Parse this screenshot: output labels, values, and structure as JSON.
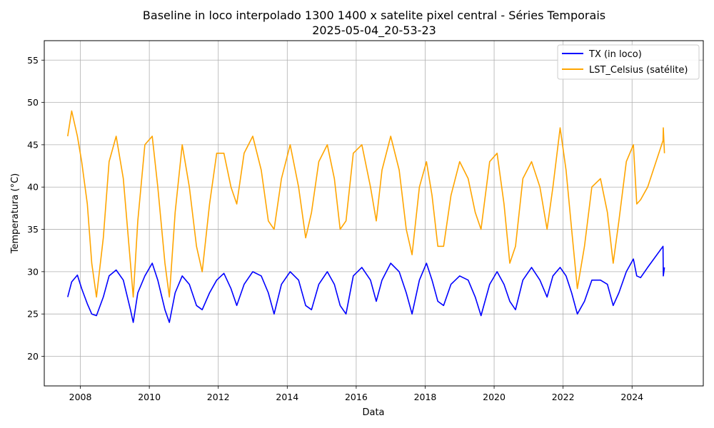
{
  "chart_data": {
    "type": "line",
    "title_line1": "Baseline in loco interpolado 1300 1400 x satelite pixel central  - Séries Temporais",
    "title_line2": "2025-05-04_20-53-23",
    "xlabel": "Data",
    "ylabel": "Temperatura (°C)",
    "xlim": [
      "2006-12-15",
      "2026-01-25"
    ],
    "ylim": [
      16.5,
      57.3
    ],
    "x_ticks": [
      "2008",
      "2010",
      "2012",
      "2014",
      "2016",
      "2018",
      "2020",
      "2022",
      "2024"
    ],
    "y_ticks": [
      "20",
      "25",
      "30",
      "35",
      "40",
      "45",
      "50",
      "55"
    ],
    "grid": true,
    "legend_position": "top-right",
    "series": [
      {
        "name": "TX (in loco)",
        "color": "#0000ff",
        "points": [
          [
            "2007-08-20",
            27.0
          ],
          [
            "2007-10-01",
            28.8
          ],
          [
            "2007-12-01",
            29.6
          ],
          [
            "2008-01-15",
            28.0
          ],
          [
            "2008-03-15",
            26.2
          ],
          [
            "2008-05-01",
            25.0
          ],
          [
            "2008-06-20",
            24.8
          ],
          [
            "2008-09-01",
            27.0
          ],
          [
            "2008-11-01",
            29.5
          ],
          [
            "2009-01-15",
            30.2
          ],
          [
            "2009-04-01",
            29.0
          ],
          [
            "2009-06-15",
            25.5
          ],
          [
            "2009-07-15",
            24.0
          ],
          [
            "2009-09-01",
            27.5
          ],
          [
            "2009-11-15",
            29.5
          ],
          [
            "2010-02-01",
            31.0
          ],
          [
            "2010-04-01",
            29.0
          ],
          [
            "2010-06-15",
            25.5
          ],
          [
            "2010-08-01",
            24.0
          ],
          [
            "2010-10-01",
            27.5
          ],
          [
            "2010-12-15",
            29.5
          ],
          [
            "2011-03-01",
            28.5
          ],
          [
            "2011-05-15",
            26.0
          ],
          [
            "2011-07-15",
            25.5
          ],
          [
            "2011-10-01",
            27.5
          ],
          [
            "2011-12-15",
            29.0
          ],
          [
            "2012-03-01",
            29.8
          ],
          [
            "2012-05-15",
            28.0
          ],
          [
            "2012-07-15",
            26.0
          ],
          [
            "2012-10-01",
            28.5
          ],
          [
            "2013-01-01",
            30.0
          ],
          [
            "2013-04-01",
            29.5
          ],
          [
            "2013-06-15",
            27.5
          ],
          [
            "2013-08-15",
            25.0
          ],
          [
            "2013-11-01",
            28.5
          ],
          [
            "2014-02-01",
            30.0
          ],
          [
            "2014-05-01",
            29.0
          ],
          [
            "2014-07-15",
            26.0
          ],
          [
            "2014-09-15",
            25.5
          ],
          [
            "2014-12-01",
            28.5
          ],
          [
            "2015-03-01",
            30.0
          ],
          [
            "2015-05-15",
            28.5
          ],
          [
            "2015-07-15",
            26.0
          ],
          [
            "2015-09-15",
            25.0
          ],
          [
            "2015-12-01",
            29.5
          ],
          [
            "2016-03-01",
            30.5
          ],
          [
            "2016-06-01",
            29.0
          ],
          [
            "2016-08-01",
            26.5
          ],
          [
            "2016-10-01",
            29.0
          ],
          [
            "2017-01-01",
            31.0
          ],
          [
            "2017-04-01",
            30.0
          ],
          [
            "2017-06-15",
            27.5
          ],
          [
            "2017-08-15",
            25.0
          ],
          [
            "2017-11-01",
            29.0
          ],
          [
            "2018-01-15",
            31.0
          ],
          [
            "2018-03-15",
            29.0
          ],
          [
            "2018-05-15",
            26.5
          ],
          [
            "2018-07-15",
            26.0
          ],
          [
            "2018-10-01",
            28.5
          ],
          [
            "2019-01-01",
            29.5
          ],
          [
            "2019-04-01",
            29.0
          ],
          [
            "2019-06-15",
            27.0
          ],
          [
            "2019-08-15",
            24.8
          ],
          [
            "2019-11-15",
            28.5
          ],
          [
            "2020-02-01",
            30.0
          ],
          [
            "2020-04-15",
            28.5
          ],
          [
            "2020-06-15",
            26.5
          ],
          [
            "2020-08-15",
            25.5
          ],
          [
            "2020-11-01",
            29.0
          ],
          [
            "2021-02-01",
            30.5
          ],
          [
            "2021-05-01",
            29.0
          ],
          [
            "2021-07-15",
            27.0
          ],
          [
            "2021-09-15",
            29.5
          ],
          [
            "2021-12-01",
            30.5
          ],
          [
            "2022-02-01",
            29.5
          ],
          [
            "2022-04-01",
            27.5
          ],
          [
            "2022-06-01",
            25.0
          ],
          [
            "2022-08-15",
            26.5
          ],
          [
            "2022-11-01",
            29.0
          ],
          [
            "2023-02-01",
            29.0
          ],
          [
            "2023-04-15",
            28.5
          ],
          [
            "2023-06-15",
            26.0
          ],
          [
            "2023-08-15",
            27.5
          ],
          [
            "2023-11-01",
            30.0
          ],
          [
            "2024-01-15",
            31.5
          ],
          [
            "2024-02-20",
            29.5
          ],
          [
            "2024-04-01",
            29.3
          ],
          [
            "2024-06-15",
            30.5
          ],
          [
            "2024-11-25",
            33.0
          ],
          [
            "2024-11-28",
            29.5
          ],
          [
            "2024-12-10",
            30.5
          ]
        ]
      },
      {
        "name": "LST_Celsius (satélite)",
        "color": "#ffa500",
        "points": [
          [
            "2007-08-20",
            46.0
          ],
          [
            "2007-10-01",
            49.0
          ],
          [
            "2007-12-01",
            46.0
          ],
          [
            "2008-01-15",
            43.0
          ],
          [
            "2008-03-15",
            38.0
          ],
          [
            "2008-05-01",
            31.0
          ],
          [
            "2008-06-20",
            27.0
          ],
          [
            "2008-09-01",
            34.0
          ],
          [
            "2008-11-01",
            43.0
          ],
          [
            "2009-01-15",
            46.0
          ],
          [
            "2009-04-01",
            41.0
          ],
          [
            "2009-06-15",
            31.0
          ],
          [
            "2009-07-15",
            27.0
          ],
          [
            "2009-09-01",
            36.0
          ],
          [
            "2009-11-15",
            45.0
          ],
          [
            "2010-02-01",
            46.0
          ],
          [
            "2010-04-01",
            40.0
          ],
          [
            "2010-06-15",
            31.0
          ],
          [
            "2010-08-01",
            27.0
          ],
          [
            "2010-10-01",
            37.0
          ],
          [
            "2010-12-15",
            45.0
          ],
          [
            "2011-03-01",
            40.0
          ],
          [
            "2011-05-15",
            33.0
          ],
          [
            "2011-07-15",
            30.0
          ],
          [
            "2011-10-01",
            38.0
          ],
          [
            "2011-12-15",
            44.0
          ],
          [
            "2012-03-01",
            44.0
          ],
          [
            "2012-05-15",
            40.0
          ],
          [
            "2012-07-15",
            38.0
          ],
          [
            "2012-10-01",
            44.0
          ],
          [
            "2013-01-01",
            46.0
          ],
          [
            "2013-04-01",
            42.0
          ],
          [
            "2013-06-15",
            36.0
          ],
          [
            "2013-08-15",
            35.0
          ],
          [
            "2013-11-01",
            41.0
          ],
          [
            "2014-02-01",
            45.0
          ],
          [
            "2014-05-01",
            40.0
          ],
          [
            "2014-07-15",
            34.0
          ],
          [
            "2014-09-15",
            37.0
          ],
          [
            "2014-12-01",
            43.0
          ],
          [
            "2015-03-01",
            45.0
          ],
          [
            "2015-05-15",
            41.0
          ],
          [
            "2015-07-15",
            35.0
          ],
          [
            "2015-09-15",
            36.0
          ],
          [
            "2015-12-01",
            44.0
          ],
          [
            "2016-03-01",
            45.0
          ],
          [
            "2016-06-01",
            40.0
          ],
          [
            "2016-08-01",
            36.0
          ],
          [
            "2016-10-01",
            42.0
          ],
          [
            "2017-01-01",
            46.0
          ],
          [
            "2017-04-01",
            42.0
          ],
          [
            "2017-06-15",
            35.0
          ],
          [
            "2017-08-15",
            32.0
          ],
          [
            "2017-11-01",
            40.0
          ],
          [
            "2018-01-15",
            43.0
          ],
          [
            "2018-03-15",
            39.0
          ],
          [
            "2018-05-15",
            33.0
          ],
          [
            "2018-07-15",
            33.0
          ],
          [
            "2018-10-01",
            39.0
          ],
          [
            "2019-01-01",
            43.0
          ],
          [
            "2019-04-01",
            41.0
          ],
          [
            "2019-06-15",
            37.0
          ],
          [
            "2019-08-15",
            35.0
          ],
          [
            "2019-11-15",
            43.0
          ],
          [
            "2020-02-01",
            44.0
          ],
          [
            "2020-04-15",
            38.0
          ],
          [
            "2020-06-15",
            31.0
          ],
          [
            "2020-08-15",
            33.0
          ],
          [
            "2020-11-01",
            41.0
          ],
          [
            "2021-02-01",
            43.0
          ],
          [
            "2021-05-01",
            40.0
          ],
          [
            "2021-07-15",
            35.0
          ],
          [
            "2021-09-15",
            40.0
          ],
          [
            "2021-12-01",
            47.0
          ],
          [
            "2022-02-01",
            42.0
          ],
          [
            "2022-04-01",
            35.0
          ],
          [
            "2022-06-01",
            28.0
          ],
          [
            "2022-08-15",
            33.0
          ],
          [
            "2022-11-01",
            40.0
          ],
          [
            "2023-02-01",
            41.0
          ],
          [
            "2023-04-15",
            37.0
          ],
          [
            "2023-06-15",
            31.0
          ],
          [
            "2023-08-15",
            36.0
          ],
          [
            "2023-11-01",
            43.0
          ],
          [
            "2024-01-15",
            45.0
          ],
          [
            "2024-02-20",
            38.0
          ],
          [
            "2024-04-01",
            38.5
          ],
          [
            "2024-06-15",
            40.0
          ],
          [
            "2024-11-25",
            45.5
          ],
          [
            "2024-11-28",
            47.0
          ],
          [
            "2024-12-10",
            44.0
          ]
        ]
      }
    ]
  }
}
